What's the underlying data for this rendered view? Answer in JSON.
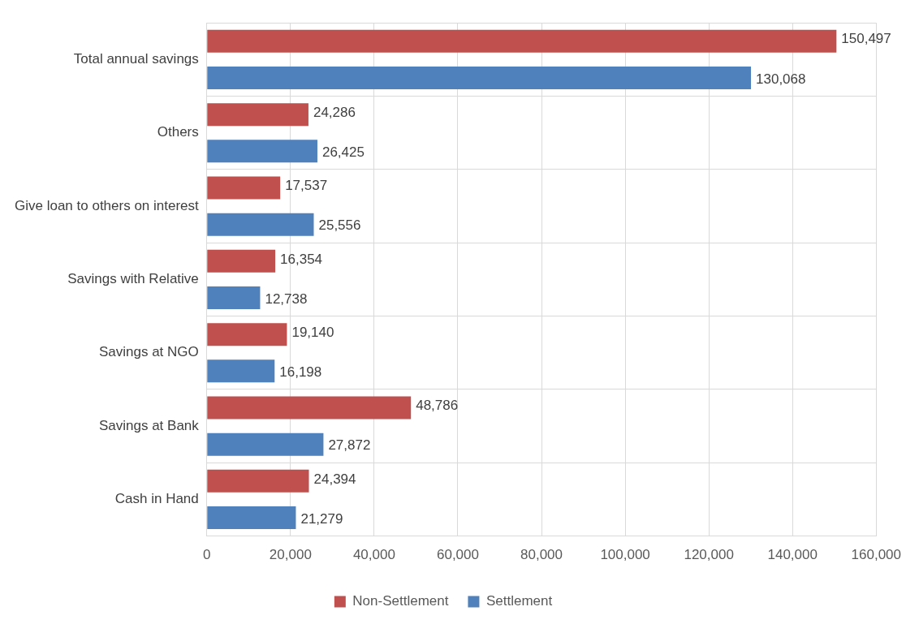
{
  "chart_data": {
    "type": "bar",
    "orientation": "horizontal",
    "categories": [
      "Total annual savings",
      "Others",
      "Give loan to others on interest",
      "Savings with Relative",
      "Savings at NGO",
      "Savings at Bank",
      "Cash in Hand"
    ],
    "series": [
      {
        "name": "Non-Settlement",
        "color": "#c0504d",
        "values": [
          150497,
          24286,
          17537,
          16354,
          19140,
          48786,
          24394
        ],
        "value_labels": [
          "150,497",
          "24,286",
          "17,537",
          "16,354",
          "19,140",
          "48,786",
          "24,394"
        ]
      },
      {
        "name": "Settlement",
        "color": "#4f81bd",
        "values": [
          130068,
          26425,
          25556,
          12738,
          16198,
          27872,
          21279
        ],
        "value_labels": [
          "130,068",
          "26,425",
          "25,556",
          "12,738",
          "16,198",
          "27,872",
          "21,279"
        ]
      }
    ],
    "xlim": [
      0,
      160000
    ],
    "xticks": [
      {
        "value": 0,
        "label": "0"
      },
      {
        "value": 20000,
        "label": "20,000"
      },
      {
        "value": 40000,
        "label": "40,000"
      },
      {
        "value": 60000,
        "label": "60,000"
      },
      {
        "value": 80000,
        "label": "80,000"
      },
      {
        "value": 100000,
        "label": "100,000"
      },
      {
        "value": 120000,
        "label": "120,000"
      },
      {
        "value": 140000,
        "label": "140,000"
      },
      {
        "value": 160000,
        "label": "160,000"
      }
    ],
    "grid": true,
    "legend": "bottom"
  }
}
